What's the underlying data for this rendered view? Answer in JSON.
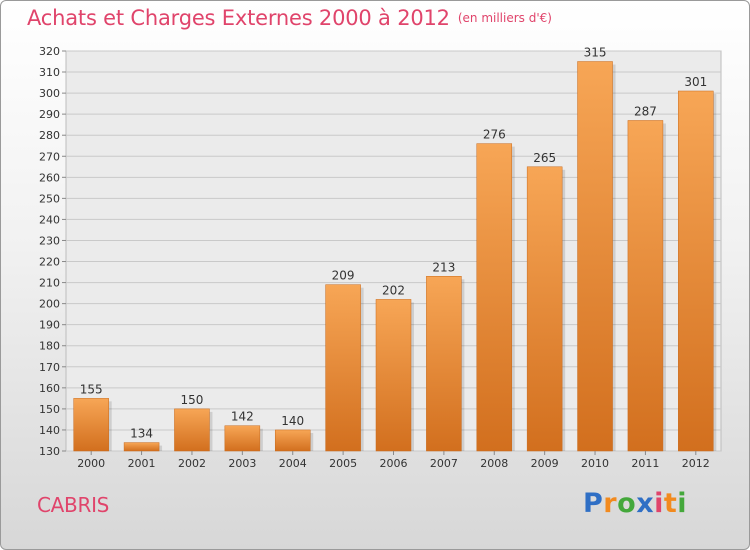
{
  "title": "Achats et Charges Externes 2000 à 2012",
  "subtitle": "(en milliers d'€)",
  "commune": "CABRIS",
  "brand": {
    "name": "Proxiti",
    "letters": [
      "P",
      "r",
      "o",
      "x",
      "i",
      "t",
      "i"
    ],
    "colors": [
      "#2f6fc5",
      "#f28a1e",
      "#44a83b",
      "#2f6fc5",
      "#e0446b",
      "#f28a1e",
      "#44a83b"
    ]
  },
  "colors": {
    "bar_top": "#f7a656",
    "bar_bottom": "#d26f1e",
    "accent": "#e0446b",
    "grid": "#c9c9c9"
  },
  "chart_data": {
    "type": "bar",
    "categories": [
      "2000",
      "2001",
      "2002",
      "2003",
      "2004",
      "2005",
      "2006",
      "2007",
      "2008",
      "2009",
      "2010",
      "2011",
      "2012"
    ],
    "values": [
      155,
      134,
      150,
      142,
      140,
      209,
      202,
      213,
      276,
      265,
      315,
      287,
      301
    ],
    "title": "Achats et Charges Externes 2000 à 2012",
    "subtitle": "(en milliers d'€)",
    "xlabel": "",
    "ylabel": "",
    "ylim": [
      130,
      320
    ],
    "yticks": [
      130,
      140,
      150,
      160,
      170,
      180,
      190,
      200,
      210,
      220,
      230,
      240,
      250,
      260,
      270,
      280,
      290,
      300,
      310,
      320
    ],
    "grid": true,
    "data_labels": true
  }
}
